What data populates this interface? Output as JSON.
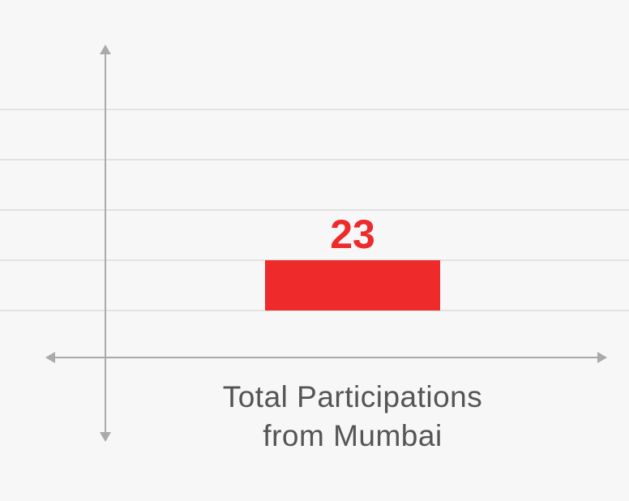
{
  "chart_data": {
    "type": "bar",
    "categories": [
      "Total Participations from Mumbai"
    ],
    "values": [
      23
    ],
    "color": "#ee2a2b"
  }
}
